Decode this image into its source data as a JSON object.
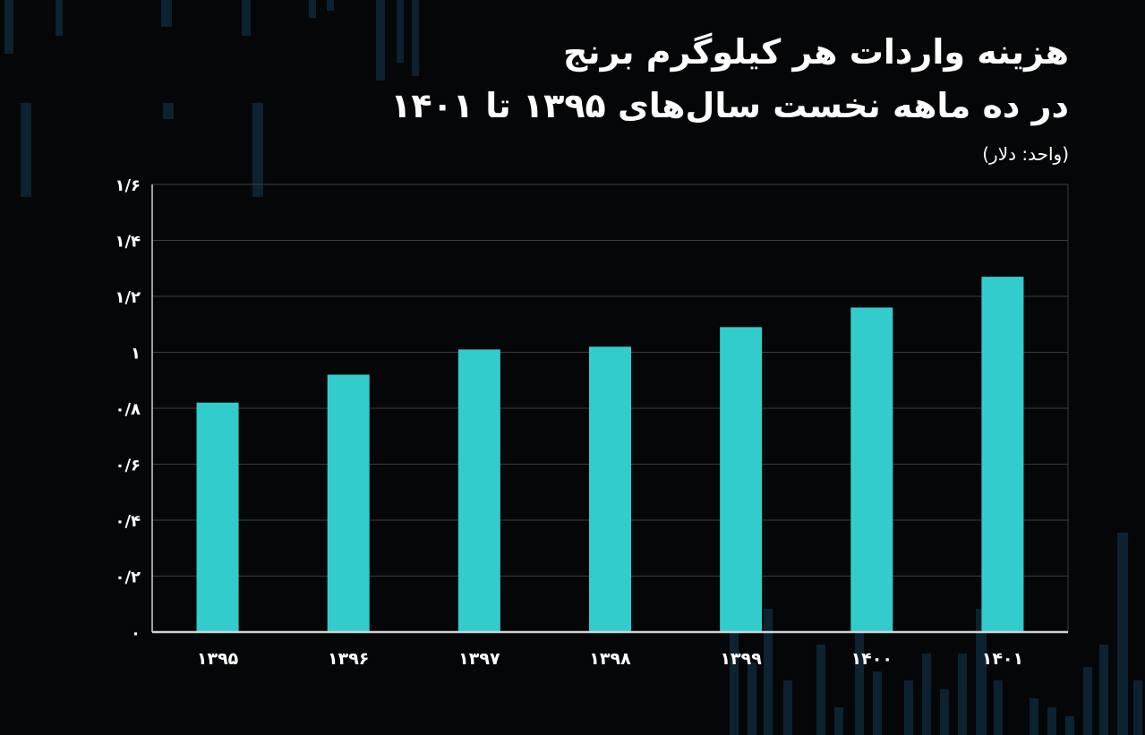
{
  "title_line1": "هزینه واردات هر کیلوگرم برنج",
  "title_line2": "در ده ماهه نخست سال‌های ۱۳۹۵ تا ۱۴۰۱",
  "unit_label": "(واحد: دلار)",
  "colors": {
    "background": "#050607",
    "bar": "#33cccc",
    "grid": "#3a3d40",
    "axis": "#cfd2d4",
    "text": "#ffffff",
    "decoration": "#0c2230"
  },
  "chart_data": {
    "type": "bar",
    "categories": [
      "۱۳۹۵",
      "۱۳۹۶",
      "۱۳۹۷",
      "۱۳۹۸",
      "۱۳۹۹",
      "۱۴۰۰",
      "۱۴۰۱"
    ],
    "values": [
      0.82,
      0.92,
      1.01,
      1.02,
      1.09,
      1.16,
      1.27
    ],
    "ylim": [
      0,
      1.6
    ],
    "yticks": [
      0,
      0.2,
      0.4,
      0.6,
      0.8,
      1,
      1.2,
      1.4,
      1.6
    ],
    "ytick_labels": [
      "۰",
      "۰/۲",
      "۰/۴",
      "۰/۶",
      "۰/۸",
      "۱",
      "۱/۲",
      "۱/۴",
      "۱/۶"
    ],
    "title": "هزینه واردات هر کیلوگرم برنج در ده ماهه نخست سال‌های ۱۳۹۵ تا ۱۴۰۱",
    "ylabel": "(واحد: دلار)",
    "xlabel": "",
    "grid": true,
    "legend": "none"
  }
}
